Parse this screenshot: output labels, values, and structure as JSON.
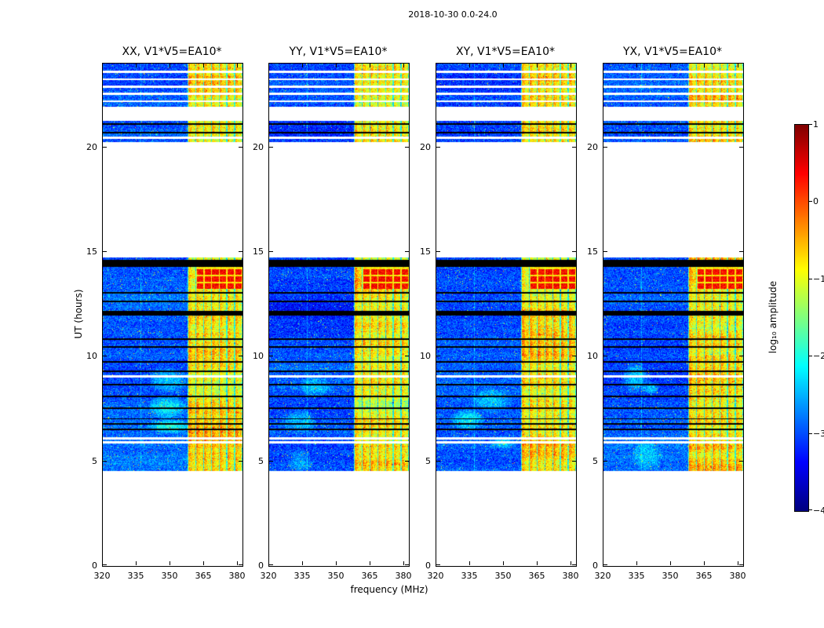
{
  "chart_data": {
    "type": "heatmap",
    "title": "2018-10-30 0.0-24.0",
    "xlabel": "frequency (MHz)",
    "ylabel": "UT (hours)",
    "colorbar_label": "log₁₀ amplitude",
    "colormap": "jet",
    "clim": [
      -4,
      1
    ],
    "xlim": [
      320,
      382
    ],
    "ylim": [
      0,
      24
    ],
    "xticks": [
      320,
      335,
      350,
      365,
      380
    ],
    "yticks": [
      0,
      5,
      10,
      15,
      20
    ],
    "colorbar_ticks": [
      1,
      0,
      -1,
      -2,
      -3,
      -4
    ],
    "panels": [
      {
        "title": "XX, V1*V5=EA10*",
        "seed": 101
      },
      {
        "title": "YY, V1*V5=EA10*",
        "seed": 202
      },
      {
        "title": "XY, V1*V5=EA10*",
        "seed": 303
      },
      {
        "title": "YX, V1*V5=EA10*",
        "seed": 404
      }
    ],
    "data_segments": [
      [
        4.55,
        14.75
      ],
      [
        20.25,
        24.0
      ]
    ],
    "rfi_band": [
      357.6,
      382
    ],
    "features": {
      "black_bands": [
        [
          14.3,
          14.62
        ],
        [
          11.98,
          12.18
        ]
      ],
      "black_lines": [
        13.05,
        12.65,
        10.85,
        10.45,
        9.75,
        9.3,
        8.65,
        8.1,
        7.55,
        7.03,
        6.8,
        6.52,
        21.1,
        20.7
      ],
      "white_lines": [
        6.1,
        5.9,
        9.05,
        23.6,
        23.25,
        22.9,
        22.55,
        22.2,
        20.45
      ],
      "white_bands": [
        [
          21.25,
          21.95
        ]
      ],
      "red_blob_trange": [
        13.25,
        14.28
      ],
      "noise_floor": -3.45,
      "rfi_level": -1.2
    }
  }
}
